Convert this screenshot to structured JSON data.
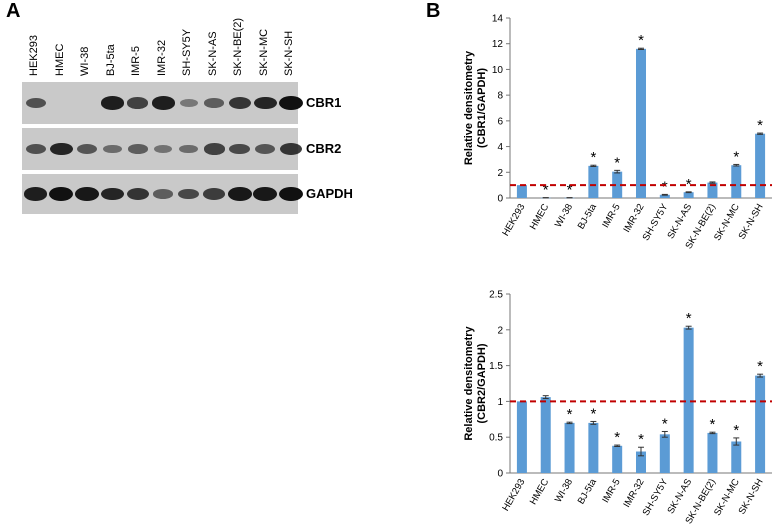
{
  "panels": {
    "a": "A",
    "b": "B"
  },
  "lanes": [
    "HEK293",
    "HMEC",
    "WI-38",
    "BJ-5ta",
    "IMR-5",
    "IMR-32",
    "SH-SY5Y",
    "SK-N-AS",
    "SK-N-BE(2)",
    "SK-N-MC",
    "SK-N-SH"
  ],
  "blots": [
    {
      "name": "CBR1",
      "intensity": [
        0.55,
        0.0,
        0.0,
        0.9,
        0.65,
        0.9,
        0.25,
        0.45,
        0.75,
        0.85,
        1.0
      ]
    },
    {
      "name": "CBR2",
      "intensity": [
        0.55,
        0.85,
        0.5,
        0.35,
        0.45,
        0.3,
        0.35,
        0.65,
        0.6,
        0.5,
        0.75
      ]
    },
    {
      "name": "GAPDH",
      "intensity": [
        0.9,
        1.0,
        0.95,
        0.85,
        0.75,
        0.45,
        0.6,
        0.7,
        0.95,
        0.95,
        1.0
      ]
    }
  ],
  "chart_data": [
    {
      "type": "bar",
      "ylabel": "Relative densitometry\n(CBR1/GAPDH)",
      "ylim": [
        0,
        14
      ],
      "yticks": [
        0,
        2,
        4,
        6,
        8,
        10,
        12,
        14
      ],
      "reference_line": 1,
      "categories": [
        "HEK293",
        "HMEC",
        "WI-38",
        "BJ-5ta",
        "IMR-5",
        "IMR-32",
        "SH-SY5Y",
        "SK-N-AS",
        "SK-N-BE(2)",
        "SK-N-MC",
        "SK-N-SH"
      ],
      "values": [
        1.0,
        0.02,
        0.02,
        2.5,
        2.05,
        11.6,
        0.25,
        0.45,
        1.2,
        2.55,
        5.0
      ],
      "errors": [
        0.0,
        0.01,
        0.01,
        0.05,
        0.1,
        0.05,
        0.03,
        0.03,
        0.05,
        0.06,
        0.05
      ],
      "significance": [
        "",
        "*",
        "*",
        "*",
        "*",
        "*",
        "*",
        "*",
        "",
        "*",
        "*"
      ],
      "bar_color": "#5b9bd5",
      "line_color": "#c00000"
    },
    {
      "type": "bar",
      "ylabel": "Relative densitometry\n(CBR2/GAPDH)",
      "ylim": [
        0,
        2.5
      ],
      "yticks": [
        0,
        0.5,
        1,
        1.5,
        2,
        2.5
      ],
      "reference_line": 1,
      "categories": [
        "HEK293",
        "HMEC",
        "WI-38",
        "BJ-5ta",
        "IMR-5",
        "IMR-32",
        "SH-SY5Y",
        "SK-N-AS",
        "SK-N-BE(2)",
        "SK-N-MC",
        "SK-N-SH"
      ],
      "values": [
        1.0,
        1.06,
        0.7,
        0.7,
        0.38,
        0.3,
        0.54,
        2.03,
        0.56,
        0.44,
        1.36
      ],
      "errors": [
        0.0,
        0.02,
        0.01,
        0.02,
        0.01,
        0.06,
        0.04,
        0.02,
        0.01,
        0.05,
        0.02
      ],
      "significance": [
        "",
        "",
        "*",
        "*",
        "*",
        "*",
        "*",
        "*",
        "*",
        "*",
        "*"
      ],
      "bar_color": "#5b9bd5",
      "line_color": "#c00000"
    }
  ]
}
